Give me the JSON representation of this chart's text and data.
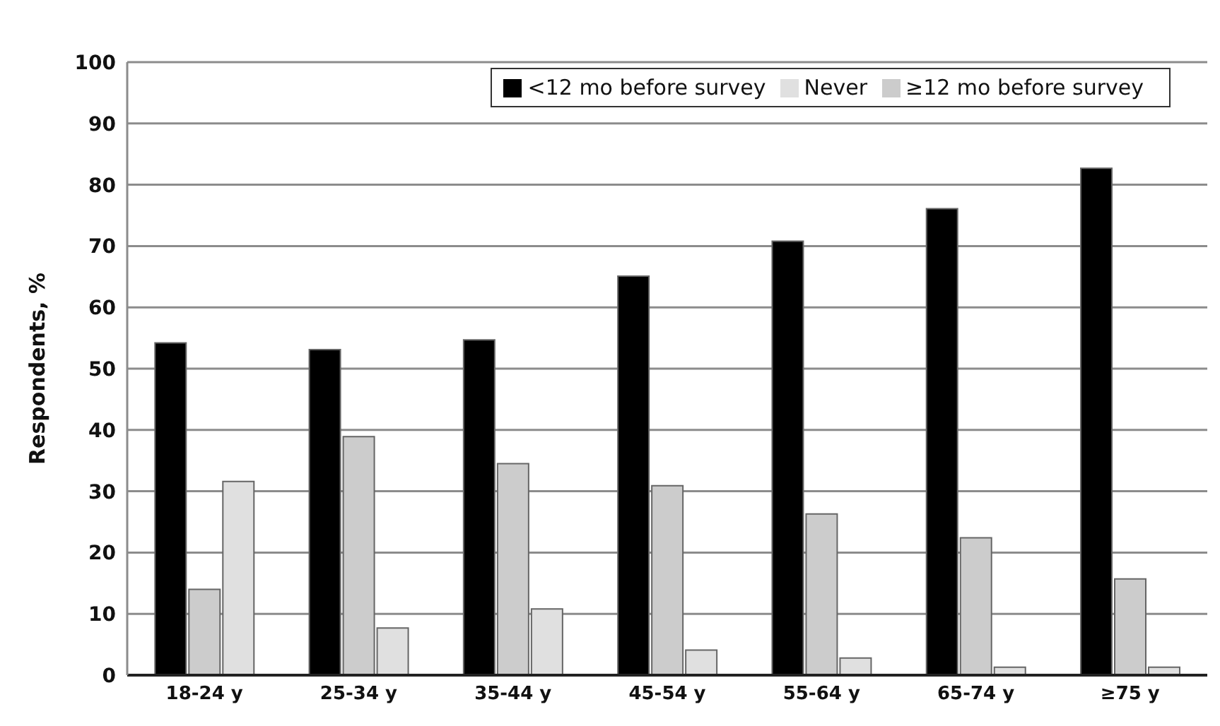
{
  "chart_data": {
    "type": "bar",
    "ylabel": "Respondents, %",
    "categories": [
      "18-24 y",
      "25-34 y",
      "35-44 y",
      "45-54 y",
      "55-64 y",
      "65-74 y",
      "≥75 y"
    ],
    "series": [
      {
        "name": "<12 mo before survey",
        "color": "#000000",
        "values": [
          54.2,
          53.1,
          54.7,
          65.1,
          70.8,
          76.1,
          82.7
        ]
      },
      {
        "name": "≥12 mo before survey",
        "color": "#cccccc",
        "values": [
          14,
          38.9,
          34.5,
          30.9,
          26.3,
          22.4,
          15.7
        ]
      },
      {
        "name": "Never",
        "color": "#e0e0e0",
        "values": [
          31.6,
          7.7,
          10.8,
          4.1,
          2.8,
          1.3,
          1.3
        ]
      }
    ],
    "ylim": [
      0,
      100
    ],
    "yticks": [
      0,
      10,
      20,
      30,
      40,
      50,
      60,
      70,
      80,
      90,
      100
    ],
    "grid": "y",
    "legend": "top right"
  }
}
